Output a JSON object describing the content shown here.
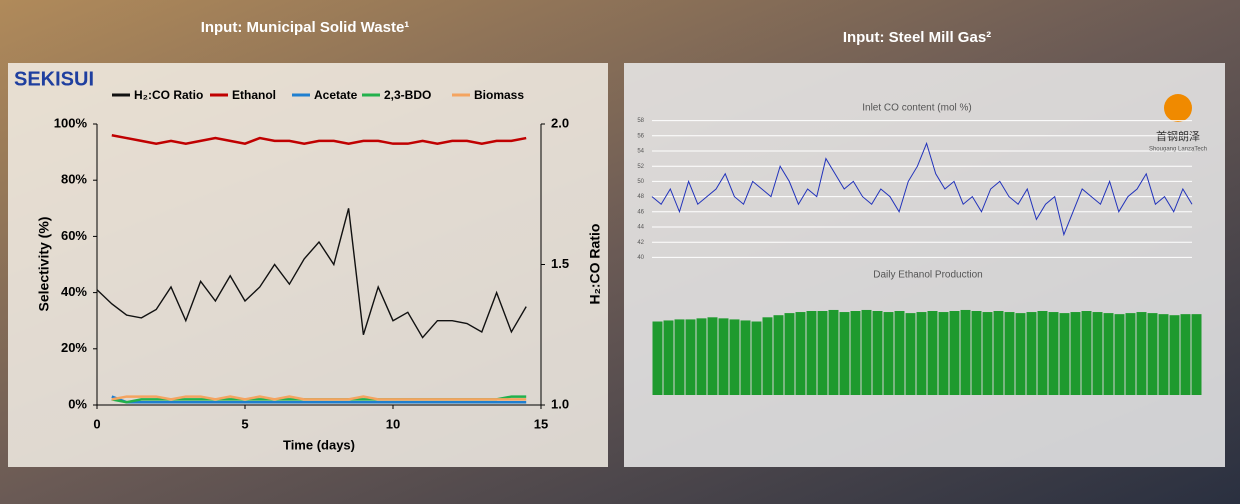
{
  "chart_data": [
    {
      "type": "line",
      "title": "Input: Municipal Solid Waste¹",
      "logo": "SEKISUI",
      "x": [
        0,
        0.5,
        1,
        1.5,
        2,
        2.5,
        3,
        3.5,
        4,
        4.5,
        5,
        5.5,
        6,
        6.5,
        7,
        7.5,
        8,
        8.5,
        9,
        9.5,
        10,
        10.5,
        11,
        11.5,
        12,
        12.5,
        13,
        13.5,
        14,
        14.5
      ],
      "xlim": [
        0,
        15
      ],
      "xticks": [
        0,
        5,
        10,
        15
      ],
      "xlabel": "Time (days)",
      "ylabel": "Selectivity (%)",
      "y2label": "H₂:CO Ratio",
      "ylim": [
        0,
        100
      ],
      "yticks": [
        {
          "value": 0,
          "label": "0%"
        },
        {
          "value": 20,
          "label": "20%"
        },
        {
          "value": 40,
          "label": "40%"
        },
        {
          "value": 60,
          "label": "60%"
        },
        {
          "value": 80,
          "label": "80%"
        },
        {
          "value": 100,
          "label": "100%"
        }
      ],
      "y2lim": [
        1,
        2
      ],
      "y2ticks": [
        {
          "value": 1,
          "label": "1.0"
        },
        1.5,
        {
          "value": 2,
          "label": "2.0"
        }
      ],
      "series": [
        {
          "name": "H₂:CO Ratio",
          "color": "#111111",
          "axis": "y2",
          "values": [
            1.41,
            1.36,
            1.32,
            1.31,
            1.34,
            1.42,
            1.3,
            1.44,
            1.37,
            1.46,
            1.37,
            1.42,
            1.5,
            1.43,
            1.52,
            1.58,
            1.5,
            1.7,
            1.25,
            1.42,
            1.3,
            1.33,
            1.24,
            1.3,
            1.3,
            1.29,
            1.26,
            1.4,
            1.26,
            1.35
          ]
        },
        {
          "name": "Ethanol",
          "color": "#c00000",
          "values": [
            null,
            96,
            95,
            94,
            93,
            94,
            93,
            94,
            95,
            94,
            93,
            95,
            94,
            94,
            93,
            94,
            94,
            93,
            94,
            94,
            93,
            93,
            94,
            93,
            94,
            94,
            93,
            94,
            94,
            95
          ]
        },
        {
          "name": "Acetate",
          "color": "#1f7fd0",
          "values": [
            null,
            3,
            1,
            1,
            1,
            1,
            1,
            1,
            1,
            1,
            1,
            1,
            1,
            1,
            1,
            1,
            1,
            1,
            1,
            1,
            1,
            1,
            1,
            1,
            1,
            1,
            1,
            1,
            1,
            1
          ]
        },
        {
          "name": "2,3-BDO",
          "color": "#22b14c",
          "values": [
            null,
            2,
            1,
            2,
            2,
            2,
            2,
            2,
            2,
            2,
            2,
            2,
            2,
            2,
            2,
            2,
            2,
            2,
            2,
            2,
            2,
            2,
            2,
            2,
            2,
            2,
            2,
            2,
            3,
            3
          ]
        },
        {
          "name": "Biomass",
          "color": "#f4a460",
          "values": [
            null,
            2,
            3,
            3,
            3,
            2,
            3,
            3,
            2,
            3,
            2,
            3,
            2,
            3,
            2,
            2,
            2,
            2,
            3,
            2,
            2,
            2,
            2,
            2,
            2,
            2,
            2,
            2,
            2,
            2
          ]
        }
      ]
    },
    {
      "type": "line",
      "title": "Input: Steel Mill Gas²",
      "logo": "首钢朗泽",
      "logo_subtitle": "Shougang LanzaTech",
      "subtitle": "Inlet CO content (mol %)",
      "color": "#2233bb",
      "values": [
        48,
        47,
        49,
        46,
        50,
        47,
        48,
        49,
        51,
        48,
        47,
        50,
        49,
        48,
        52,
        50,
        47,
        49,
        48,
        53,
        51,
        49,
        50,
        48,
        47,
        49,
        48,
        46,
        50,
        52,
        55,
        51,
        49,
        50,
        47,
        48,
        46,
        49,
        50,
        48,
        47,
        49,
        45,
        47,
        48,
        43,
        46,
        49,
        48,
        47,
        50,
        46,
        48,
        49,
        51,
        47,
        48,
        46,
        49,
        47
      ],
      "ylim": [
        39,
        59
      ],
      "yticks": [
        40,
        42,
        44,
        46,
        48,
        50,
        52,
        54,
        56,
        58
      ],
      "grid": true
    },
    {
      "type": "bar",
      "subtitle": "Daily Ethanol Production",
      "color": "#1e9a2e",
      "values": [
        70,
        71,
        72,
        72,
        73,
        74,
        73,
        72,
        71,
        70,
        74,
        76,
        78,
        79,
        80,
        80,
        81,
        79,
        80,
        81,
        80,
        79,
        80,
        78,
        79,
        80,
        79,
        80,
        81,
        80,
        79,
        80,
        79,
        78,
        79,
        80,
        79,
        78,
        79,
        80,
        79,
        78,
        77,
        78,
        79,
        78,
        77,
        76,
        77,
        77
      ],
      "ylim": [
        0,
        100
      ]
    }
  ]
}
